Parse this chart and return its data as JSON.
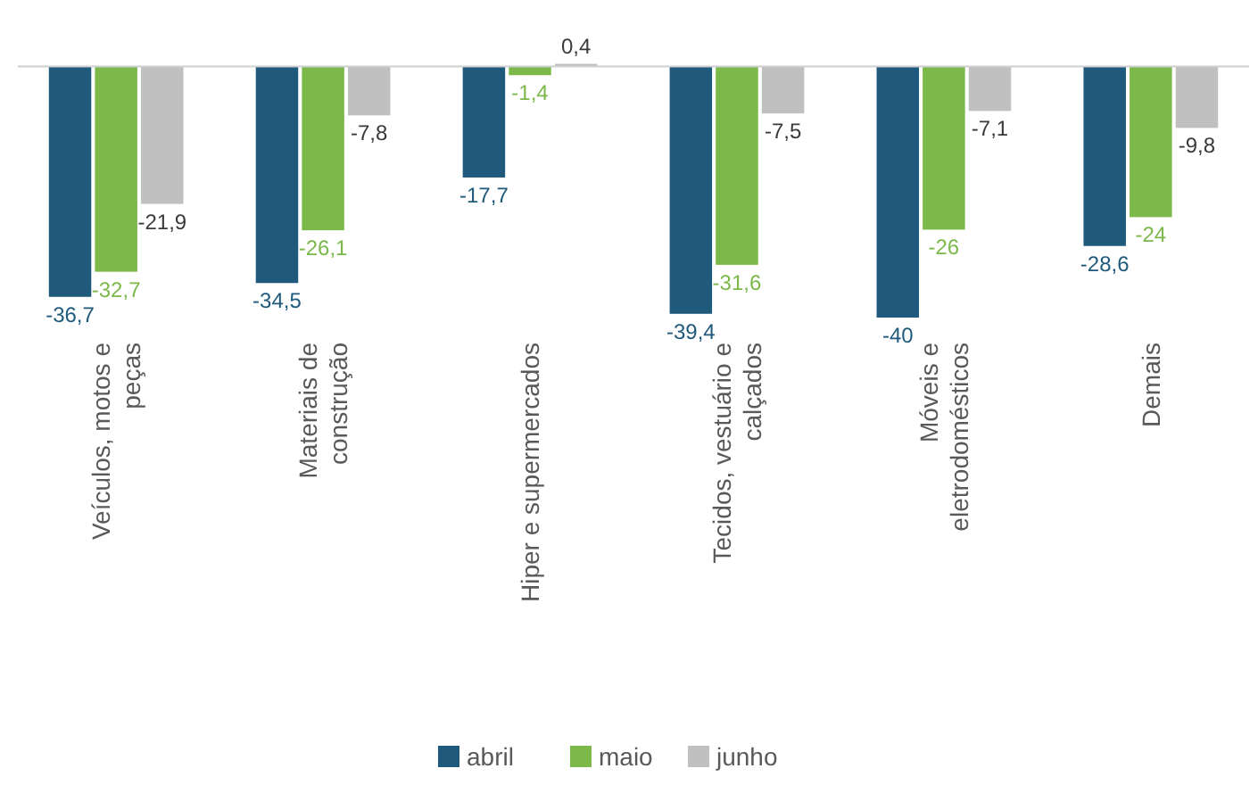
{
  "chart_data": {
    "type": "bar",
    "categories": [
      "Veículos, motos e peças",
      "Materiais de construção",
      "Hiper e supermercados",
      "Tecidos, vestuário e calçados",
      "Móveis e eletrodomésticos",
      "Demais"
    ],
    "series": [
      {
        "name": "abril",
        "color": "#1f5a7c",
        "values": [
          -36.7,
          -34.5,
          -17.7,
          -39.4,
          -40,
          -28.6
        ],
        "value_labels": [
          "-36,7",
          "-34,5",
          "-17,7",
          "-39,4",
          "-40",
          "-28,6"
        ]
      },
      {
        "name": "maio",
        "color": "#7cb84a",
        "values": [
          -32.7,
          -26.1,
          -1.4,
          -31.6,
          -26,
          -24
        ],
        "value_labels": [
          "-32,7",
          "-26,1",
          "-1,4",
          "-31,6",
          "-26",
          "-24"
        ]
      },
      {
        "name": "junho",
        "color": "#c0c0c0",
        "values": [
          -21.9,
          -7.8,
          0.4,
          -7.5,
          -7.1,
          -9.8
        ],
        "value_labels": [
          "-21,9",
          "-7,8",
          "0,4",
          "-7,5",
          "-7,1",
          "-9,8"
        ]
      }
    ],
    "legend": "bottom"
  }
}
